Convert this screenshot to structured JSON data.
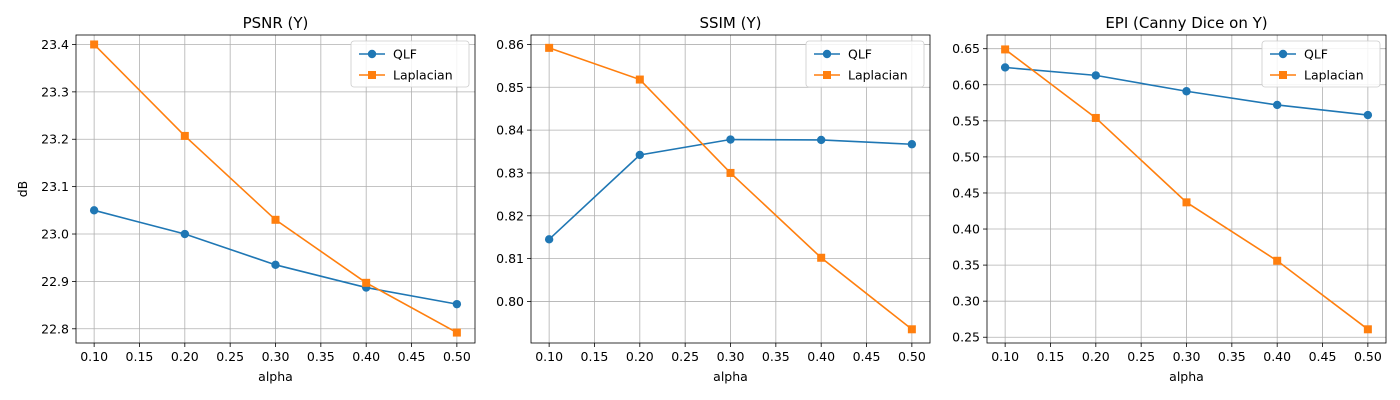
{
  "colors": {
    "qlf": "#1f77b4",
    "laplacian": "#ff7f0e",
    "grid": "#b0b0b0",
    "axes": "#000000"
  },
  "chart_data": [
    {
      "type": "line",
      "title": "PSNR (Y)",
      "xlabel": "alpha",
      "ylabel": "dB",
      "xlim": [
        0.08,
        0.52
      ],
      "ylim": [
        22.77,
        23.42
      ],
      "xticks": [
        0.1,
        0.15,
        0.2,
        0.25,
        0.3,
        0.35,
        0.4,
        0.45,
        0.5
      ],
      "xtick_labels": [
        "0.10",
        "0.15",
        "0.20",
        "0.25",
        "0.30",
        "0.35",
        "0.40",
        "0.45",
        "0.50"
      ],
      "yticks": [
        22.8,
        22.9,
        23.0,
        23.1,
        23.2,
        23.3,
        23.4
      ],
      "ytick_labels": [
        "22.8",
        "22.9",
        "23.0",
        "23.1",
        "23.2",
        "23.3",
        "23.4"
      ],
      "grid": true,
      "legend_position": "top-right",
      "x": [
        0.1,
        0.2,
        0.3,
        0.4,
        0.5
      ],
      "series": [
        {
          "name": "QLF",
          "marker": "circle",
          "values": [
            23.05,
            23.0,
            22.935,
            22.887,
            22.852
          ]
        },
        {
          "name": "Laplacian",
          "marker": "square",
          "values": [
            23.4,
            23.207,
            23.03,
            22.897,
            22.792
          ]
        }
      ]
    },
    {
      "type": "line",
      "title": "SSIM (Y)",
      "xlabel": "alpha",
      "ylabel": "",
      "xlim": [
        0.08,
        0.52
      ],
      "ylim": [
        0.7903,
        0.8622
      ],
      "xticks": [
        0.1,
        0.15,
        0.2,
        0.25,
        0.3,
        0.35,
        0.4,
        0.45,
        0.5
      ],
      "xtick_labels": [
        "0.10",
        "0.15",
        "0.20",
        "0.25",
        "0.30",
        "0.35",
        "0.40",
        "0.45",
        "0.50"
      ],
      "yticks": [
        0.8,
        0.81,
        0.82,
        0.83,
        0.84,
        0.85,
        0.86
      ],
      "ytick_labels": [
        "0.80",
        "0.81",
        "0.82",
        "0.83",
        "0.84",
        "0.85",
        "0.86"
      ],
      "grid": true,
      "legend_position": "top-right",
      "x": [
        0.1,
        0.2,
        0.3,
        0.4,
        0.5
      ],
      "series": [
        {
          "name": "QLF",
          "marker": "circle",
          "values": [
            0.8145,
            0.8342,
            0.8378,
            0.8377,
            0.8367
          ]
        },
        {
          "name": "Laplacian",
          "marker": "square",
          "values": [
            0.8592,
            0.8518,
            0.83,
            0.8102,
            0.7935
          ]
        }
      ]
    },
    {
      "type": "line",
      "title": "EPI (Canny Dice on Y)",
      "xlabel": "alpha",
      "ylabel": "",
      "xlim": [
        0.08,
        0.52
      ],
      "ylim": [
        0.242,
        0.669
      ],
      "xticks": [
        0.1,
        0.15,
        0.2,
        0.25,
        0.3,
        0.35,
        0.4,
        0.45,
        0.5
      ],
      "xtick_labels": [
        "0.10",
        "0.15",
        "0.20",
        "0.25",
        "0.30",
        "0.35",
        "0.40",
        "0.45",
        "0.50"
      ],
      "yticks": [
        0.25,
        0.3,
        0.35,
        0.4,
        0.45,
        0.5,
        0.55,
        0.6,
        0.65
      ],
      "ytick_labels": [
        "0.25",
        "0.30",
        "0.35",
        "0.40",
        "0.45",
        "0.50",
        "0.55",
        "0.60",
        "0.65"
      ],
      "grid": true,
      "legend_position": "top-right",
      "x": [
        0.1,
        0.2,
        0.3,
        0.4,
        0.5
      ],
      "series": [
        {
          "name": "QLF",
          "marker": "circle",
          "values": [
            0.624,
            0.613,
            0.591,
            0.572,
            0.558
          ]
        },
        {
          "name": "Laplacian",
          "marker": "square",
          "values": [
            0.649,
            0.554,
            0.437,
            0.356,
            0.261
          ]
        }
      ]
    }
  ]
}
